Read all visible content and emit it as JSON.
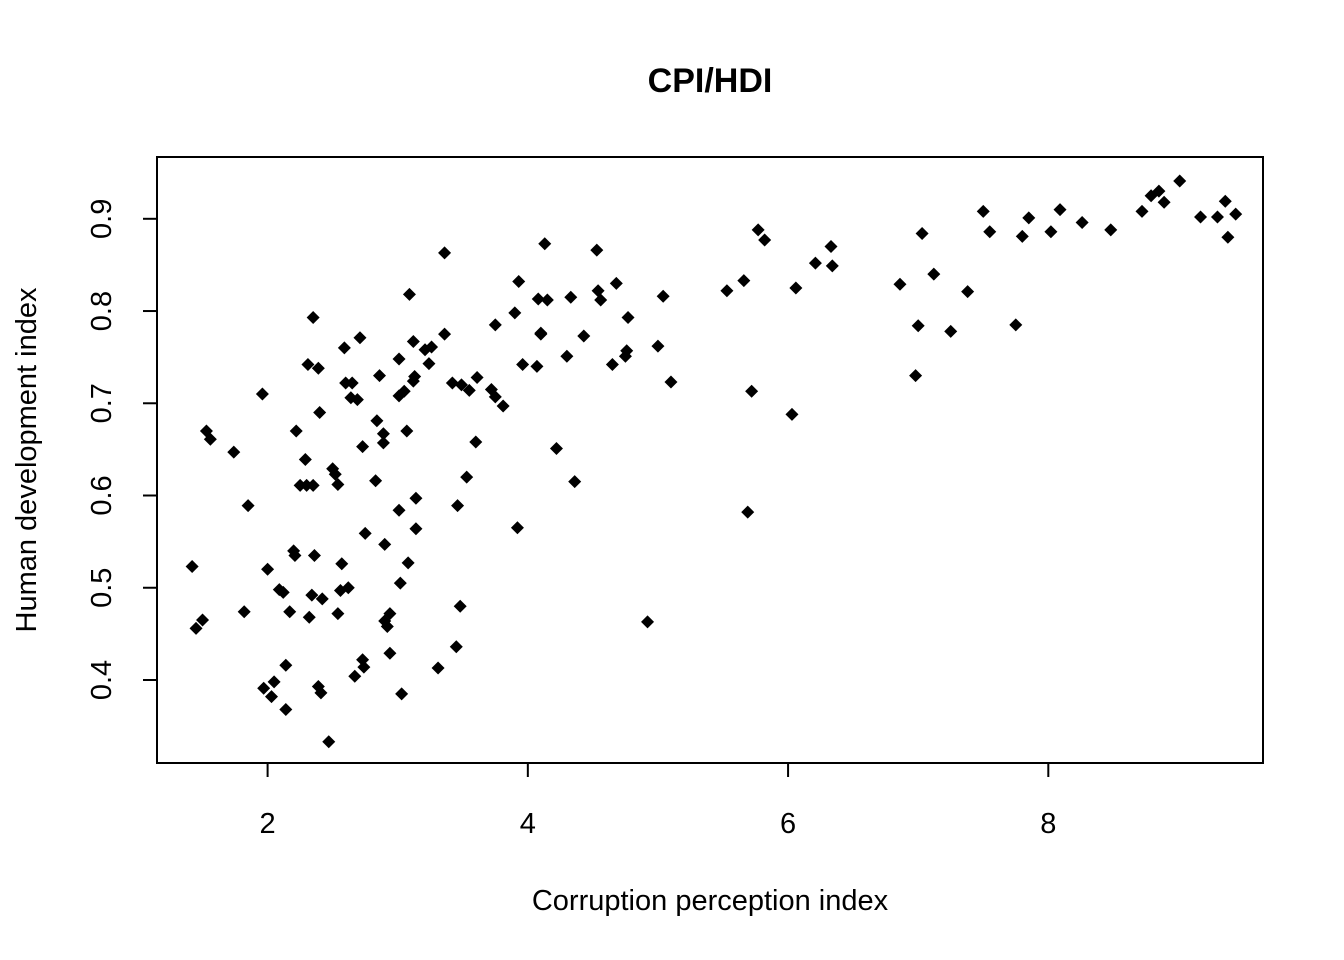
{
  "chart_data": {
    "type": "scatter",
    "title": "CPI/HDI",
    "xlabel": "Corruption perception index",
    "ylabel": "Human development index",
    "xlim": [
      1.15,
      9.65
    ],
    "ylim": [
      0.31,
      0.967
    ],
    "xticks": [
      "2",
      "4",
      "6",
      "8"
    ],
    "yticks": [
      "0.4",
      "0.5",
      "0.6",
      "0.7",
      "0.8",
      "0.9"
    ],
    "grid": false,
    "legend": "none",
    "marker": "diamond",
    "color": "#000000",
    "points": [
      [
        1.42,
        0.523
      ],
      [
        1.45,
        0.456
      ],
      [
        1.5,
        0.465
      ],
      [
        1.53,
        0.67
      ],
      [
        1.56,
        0.661
      ],
      [
        1.74,
        0.647
      ],
      [
        1.82,
        0.474
      ],
      [
        1.85,
        0.589
      ],
      [
        1.96,
        0.71
      ],
      [
        1.97,
        0.391
      ],
      [
        2.0,
        0.52
      ],
      [
        2.03,
        0.382
      ],
      [
        2.05,
        0.398
      ],
      [
        2.09,
        0.498
      ],
      [
        2.12,
        0.495
      ],
      [
        2.14,
        0.416
      ],
      [
        2.14,
        0.368
      ],
      [
        2.17,
        0.474
      ],
      [
        2.2,
        0.54
      ],
      [
        2.21,
        0.535
      ],
      [
        2.22,
        0.67
      ],
      [
        2.25,
        0.611
      ],
      [
        2.29,
        0.639
      ],
      [
        2.3,
        0.611
      ],
      [
        2.31,
        0.742
      ],
      [
        2.32,
        0.468
      ],
      [
        2.34,
        0.492
      ],
      [
        2.35,
        0.611
      ],
      [
        2.35,
        0.793
      ],
      [
        2.36,
        0.535
      ],
      [
        2.39,
        0.738
      ],
      [
        2.39,
        0.393
      ],
      [
        2.4,
        0.69
      ],
      [
        2.41,
        0.386
      ],
      [
        2.42,
        0.488
      ],
      [
        2.47,
        0.333
      ],
      [
        2.5,
        0.629
      ],
      [
        2.52,
        0.623
      ],
      [
        2.54,
        0.612
      ],
      [
        2.54,
        0.472
      ],
      [
        2.56,
        0.497
      ],
      [
        2.57,
        0.526
      ],
      [
        2.59,
        0.76
      ],
      [
        2.6,
        0.722
      ],
      [
        2.62,
        0.5
      ],
      [
        2.64,
        0.706
      ],
      [
        2.65,
        0.722
      ],
      [
        2.67,
        0.404
      ],
      [
        2.69,
        0.704
      ],
      [
        2.71,
        0.771
      ],
      [
        2.73,
        0.653
      ],
      [
        2.73,
        0.422
      ],
      [
        2.74,
        0.414
      ],
      [
        2.75,
        0.559
      ],
      [
        2.83,
        0.616
      ],
      [
        2.84,
        0.681
      ],
      [
        2.86,
        0.73
      ],
      [
        2.89,
        0.657
      ],
      [
        2.89,
        0.667
      ],
      [
        2.9,
        0.547
      ],
      [
        2.9,
        0.464
      ],
      [
        2.92,
        0.458
      ],
      [
        2.94,
        0.472
      ],
      [
        2.94,
        0.429
      ],
      [
        3.01,
        0.748
      ],
      [
        3.01,
        0.708
      ],
      [
        3.01,
        0.584
      ],
      [
        3.02,
        0.505
      ],
      [
        3.03,
        0.385
      ],
      [
        3.05,
        0.713
      ],
      [
        3.07,
        0.67
      ],
      [
        3.08,
        0.527
      ],
      [
        3.09,
        0.818
      ],
      [
        3.12,
        0.767
      ],
      [
        3.12,
        0.724
      ],
      [
        3.13,
        0.729
      ],
      [
        3.14,
        0.597
      ],
      [
        3.14,
        0.564
      ],
      [
        3.21,
        0.758
      ],
      [
        3.24,
        0.743
      ],
      [
        3.26,
        0.761
      ],
      [
        3.31,
        0.413
      ],
      [
        3.36,
        0.863
      ],
      [
        3.36,
        0.775
      ],
      [
        3.42,
        0.722
      ],
      [
        3.45,
        0.436
      ],
      [
        3.46,
        0.589
      ],
      [
        3.48,
        0.48
      ],
      [
        3.49,
        0.72
      ],
      [
        3.53,
        0.62
      ],
      [
        3.55,
        0.714
      ],
      [
        3.6,
        0.658
      ],
      [
        3.61,
        0.728
      ],
      [
        3.72,
        0.715
      ],
      [
        3.75,
        0.707
      ],
      [
        3.75,
        0.785
      ],
      [
        3.81,
        0.697
      ],
      [
        3.9,
        0.798
      ],
      [
        3.92,
        0.565
      ],
      [
        3.93,
        0.832
      ],
      [
        3.96,
        0.742
      ],
      [
        4.07,
        0.74
      ],
      [
        4.08,
        0.813
      ],
      [
        4.1,
        0.776
      ],
      [
        4.1,
        0.775
      ],
      [
        4.13,
        0.873
      ],
      [
        4.15,
        0.812
      ],
      [
        4.22,
        0.651
      ],
      [
        4.3,
        0.751
      ],
      [
        4.33,
        0.815
      ],
      [
        4.36,
        0.615
      ],
      [
        4.43,
        0.773
      ],
      [
        4.53,
        0.866
      ],
      [
        4.54,
        0.822
      ],
      [
        4.56,
        0.812
      ],
      [
        4.65,
        0.742
      ],
      [
        4.68,
        0.83
      ],
      [
        4.75,
        0.751
      ],
      [
        4.76,
        0.757
      ],
      [
        4.77,
        0.793
      ],
      [
        4.92,
        0.463
      ],
      [
        5.0,
        0.762
      ],
      [
        5.04,
        0.816
      ],
      [
        5.1,
        0.723
      ],
      [
        5.53,
        0.822
      ],
      [
        5.66,
        0.833
      ],
      [
        5.69,
        0.582
      ],
      [
        5.72,
        0.713
      ],
      [
        5.77,
        0.888
      ],
      [
        5.82,
        0.877
      ],
      [
        6.03,
        0.688
      ],
      [
        6.06,
        0.825
      ],
      [
        6.21,
        0.852
      ],
      [
        6.33,
        0.87
      ],
      [
        6.34,
        0.849
      ],
      [
        6.86,
        0.829
      ],
      [
        6.98,
        0.73
      ],
      [
        7.0,
        0.784
      ],
      [
        7.03,
        0.884
      ],
      [
        7.12,
        0.84
      ],
      [
        7.25,
        0.778
      ],
      [
        7.38,
        0.821
      ],
      [
        7.5,
        0.908
      ],
      [
        7.55,
        0.886
      ],
      [
        7.75,
        0.785
      ],
      [
        7.8,
        0.881
      ],
      [
        7.85,
        0.901
      ],
      [
        8.02,
        0.886
      ],
      [
        8.09,
        0.91
      ],
      [
        8.26,
        0.896
      ],
      [
        8.48,
        0.888
      ],
      [
        8.72,
        0.908
      ],
      [
        8.79,
        0.925
      ],
      [
        8.85,
        0.93
      ],
      [
        8.89,
        0.918
      ],
      [
        9.01,
        0.941
      ],
      [
        9.17,
        0.902
      ],
      [
        9.3,
        0.902
      ],
      [
        9.36,
        0.919
      ],
      [
        9.38,
        0.88
      ],
      [
        9.44,
        0.905
      ]
    ]
  }
}
